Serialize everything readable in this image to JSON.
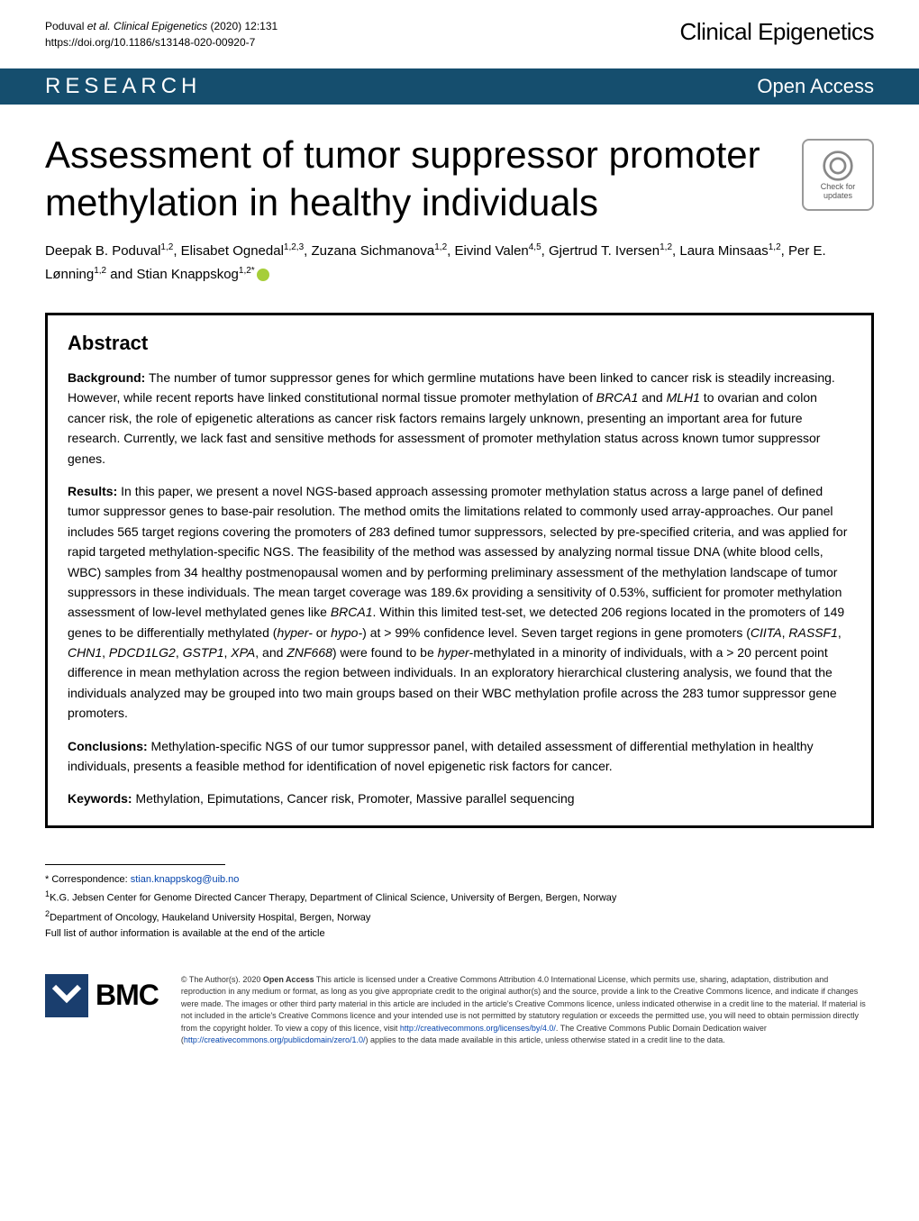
{
  "header": {
    "citation_authors": "Poduval ",
    "citation_etal": "et al. Clinical Epigenetics",
    "citation_year_vol": "          (2020) 12:131 ",
    "citation_doi": "https://doi.org/10.1186/s13148-020-00920-7",
    "journal": "Clinical Epigenetics"
  },
  "bar": {
    "section": "RESEARCH",
    "access": "Open Access"
  },
  "title": "Assessment of tumor suppressor promoter methylation in healthy individuals",
  "updates_badge": "Check for updates",
  "authors_html": "Deepak B. Poduval<sup>1,2</sup>, Elisabet Ognedal<sup>1,2,3</sup>, Zuzana Sichmanova<sup>1,2</sup>, Eivind Valen<sup>4,5</sup>, Gjertrud T. Iversen<sup>1,2</sup>, Laura Minsaas<sup>1,2</sup>, Per E. Lønning<sup>1,2</sup> and Stian Knappskog<sup>1,2*</sup>",
  "abstract": {
    "heading": "Abstract",
    "background": {
      "label": "Background:",
      "text": " The number of tumor suppressor genes for which germline mutations have been linked to cancer risk is steadily increasing. However, while recent reports have linked constitutional normal tissue promoter methylation of BRCA1 and MLH1 to ovarian and colon cancer risk, the role of epigenetic alterations as cancer risk factors remains largely unknown, presenting an important area for future research. Currently, we lack fast and sensitive methods for assessment of promoter methylation status across known tumor suppressor genes."
    },
    "results": {
      "label": "Results:",
      "text": " In this paper, we present a novel NGS-based approach assessing promoter methylation status across a large panel of defined tumor suppressor genes to base-pair resolution. The method omits the limitations related to commonly used array-approaches. Our panel includes 565 target regions covering the promoters of 283 defined tumor suppressors, selected by pre-specified criteria, and was applied for rapid targeted methylation-specific NGS. The feasibility of the method was assessed by analyzing normal tissue DNA (white blood cells, WBC) samples from 34 healthy postmenopausal women and by performing preliminary assessment of the methylation landscape of tumor suppressors in these individuals. The mean target coverage was 189.6x providing a sensitivity of 0.53%, sufficient for promoter methylation assessment of low-level methylated genes like BRCA1. Within this limited test-set, we detected 206 regions located in the promoters of 149 genes to be differentially methylated (hyper- or hypo-) at > 99% confidence level. Seven target regions in gene promoters (CIITA, RASSF1, CHN1, PDCD1LG2, GSTP1, XPA, and ZNF668) were found to be hyper-methylated in a minority of individuals, with a > 20 percent point difference in mean methylation across the region between individuals. In an exploratory hierarchical clustering analysis, we found that the individuals analyzed may be grouped into two main groups based on their WBC methylation profile across the 283 tumor suppressor gene promoters."
    },
    "conclusions": {
      "label": "Conclusions:",
      "text": " Methylation-specific NGS of our tumor suppressor panel, with detailed assessment of differential methylation in healthy individuals, presents a feasible method for identification of novel epigenetic risk factors for cancer."
    },
    "keywords": {
      "label": "Keywords:",
      "text": " Methylation, Epimutations, Cancer risk, Promoter, Massive parallel sequencing"
    }
  },
  "correspondence": {
    "line1_label": "* Correspondence: ",
    "email": "stian.knappskog@uib.no",
    "affil1": "K.G. Jebsen Center for Genome Directed Cancer Therapy, Department of Clinical Science, University of Bergen, Bergen, Norway",
    "affil2": "Department of Oncology, Haukeland University Hospital, Bergen, Norway",
    "full_list": "Full list of author information is available at the end of the article"
  },
  "license": {
    "bmc": "BMC",
    "copyright": "© The Author(s). 2020 ",
    "open_access": "Open Access",
    "text1": " This article is licensed under a Creative Commons Attribution 4.0 International License, which permits use, sharing, adaptation, distribution and reproduction in any medium or format, as long as you give appropriate credit to the original author(s) and the source, provide a link to the Creative Commons licence, and indicate if changes were made. The images or other third party material in this article are included in the article's Creative Commons licence, unless indicated otherwise in a credit line to the material. If material is not included in the article's Creative Commons licence and your intended use is not permitted by statutory regulation or exceeds the permitted use, you will need to obtain permission directly from the copyright holder. To view a copy of this licence, visit ",
    "link1": "http://creativecommons.org/licenses/by/4.0/",
    "text2": ". The Creative Commons Public Domain Dedication waiver (",
    "link2": "http://creativecommons.org/publicdomain/zero/1.0/",
    "text3": ") applies to the data made available in this article, unless otherwise stated in a credit line to the data."
  },
  "colors": {
    "bar_bg": "#154e6e",
    "bmc_bg": "#1a3e6e",
    "link": "#0645AD",
    "orcid": "#a6ce39"
  }
}
